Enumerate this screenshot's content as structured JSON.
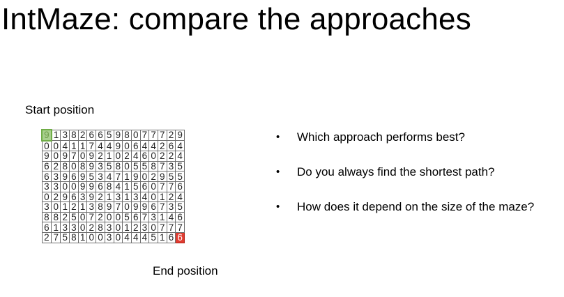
{
  "title": "IntMaze: compare the approaches",
  "start_caption": "Start position",
  "end_caption": "End position",
  "maze": {
    "rows": [
      "9138266598077729",
      "0041174490644264",
      "9097092102460224",
      "6280893580558735",
      "6396953471902955",
      "3300996841560776",
      "0296392131340124",
      "3012138970996735",
      "8825072005673146",
      "6133028301230777",
      "2758100304445166"
    ],
    "start_color": "#a9d08e",
    "end_color": "#e03c31"
  },
  "bullets": [
    {
      "symbol": "•",
      "text": "Which approach performs best?"
    },
    {
      "symbol": "•",
      "text": "Do you always find the shortest path?"
    },
    {
      "symbol": "•",
      "text": "How does it depend on the size of the maze?"
    }
  ]
}
